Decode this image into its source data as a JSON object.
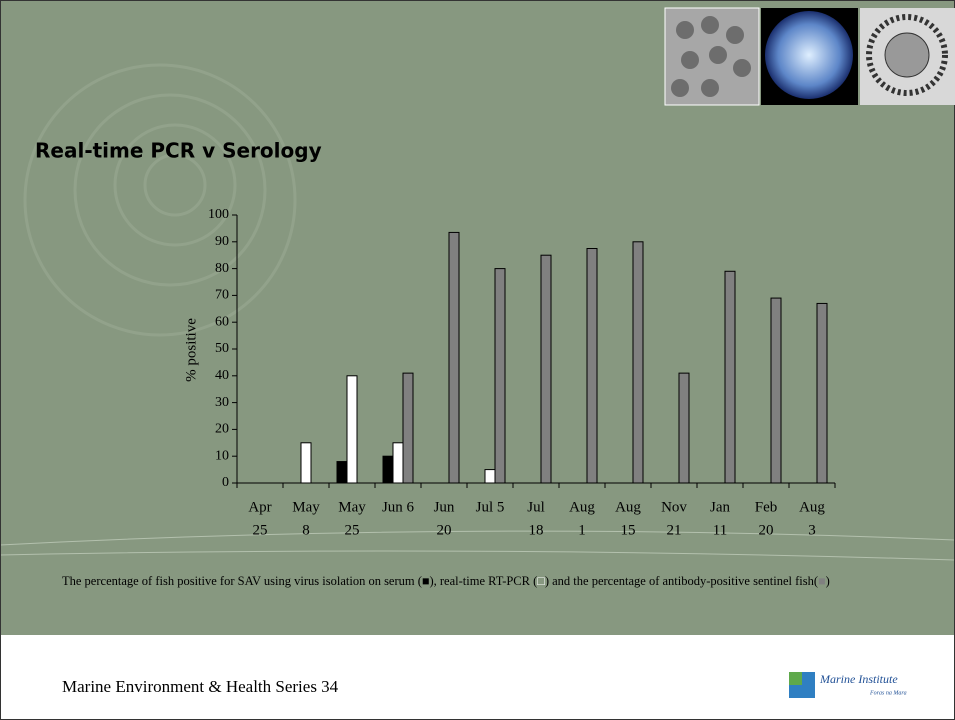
{
  "chart_data": {
    "type": "bar",
    "title": "Real-time PCR v Serology",
    "y_label": "% positive",
    "categories": [
      [
        "Apr",
        "25"
      ],
      [
        "May",
        "8"
      ],
      [
        "May",
        "25"
      ],
      [
        "Jun 6"
      ],
      [
        "Jun",
        "20"
      ],
      [
        "Jul 5"
      ],
      [
        "Jul",
        "18"
      ],
      [
        "Aug",
        "1"
      ],
      [
        "Aug",
        "15"
      ],
      [
        "Nov",
        "21"
      ],
      [
        "Jan",
        "11"
      ],
      [
        "Feb",
        "20"
      ],
      [
        "Aug",
        "3"
      ]
    ],
    "series": [
      {
        "color": "#000000",
        "values": [
          null,
          null,
          8,
          10,
          null,
          null,
          null,
          null,
          null,
          null,
          null,
          null,
          null
        ]
      },
      {
        "color": "#ffffff",
        "values": [
          null,
          15,
          40,
          15,
          null,
          5,
          null,
          null,
          null,
          null,
          null,
          null,
          null
        ]
      },
      {
        "color": "#808080",
        "values": [
          null,
          null,
          null,
          41,
          93.5,
          80,
          85,
          87.5,
          90,
          41,
          79,
          69,
          67
        ]
      }
    ],
    "ylim": [
      0,
      100
    ],
    "yticks": [
      0,
      10,
      20,
      30,
      40,
      50,
      60,
      70,
      80,
      90,
      100
    ],
    "grid": false,
    "caption": [
      "The percentage of fish positive for SAV using virus isolation on serum (",
      "■",
      "), real-time RT-PCR (",
      "□",
      ") and the percentage of antibody-positive sentinel fish(",
      "■",
      ")"
    ]
  },
  "footer": {
    "text": "Marine Environment & Health Series 34",
    "logo": "Marine Institute",
    "logo_sub": "Foras na Mara"
  }
}
